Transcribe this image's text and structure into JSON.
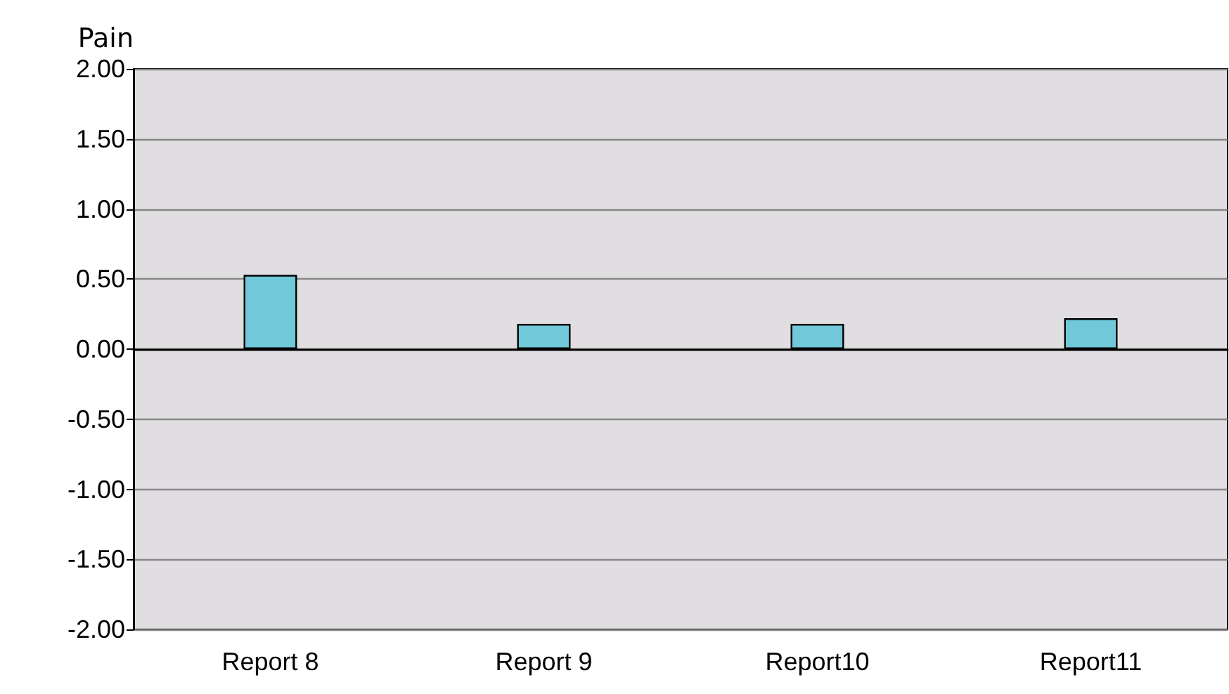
{
  "chart_data": {
    "type": "bar",
    "ylabel": "Pain",
    "categories": [
      "Report 8",
      "Report 9",
      "Report10",
      "Report11"
    ],
    "values": [
      0.53,
      0.18,
      0.18,
      0.22
    ],
    "color": "#70c8d8",
    "ylim": [
      -2,
      2
    ],
    "yticks": [
      {
        "value": -2,
        "label": "-2.00"
      },
      {
        "value": -1.5,
        "label": "-1.50"
      },
      {
        "value": -1,
        "label": "-1.00"
      },
      {
        "value": -0.5,
        "label": "-0.50"
      },
      {
        "value": 0,
        "label": "0.00"
      },
      {
        "value": 0.5,
        "label": "0.50"
      },
      {
        "value": 1,
        "label": "1.00"
      },
      {
        "value": 1.5,
        "label": "1.50"
      },
      {
        "value": 2,
        "label": "2.00"
      }
    ],
    "grid": "y"
  }
}
